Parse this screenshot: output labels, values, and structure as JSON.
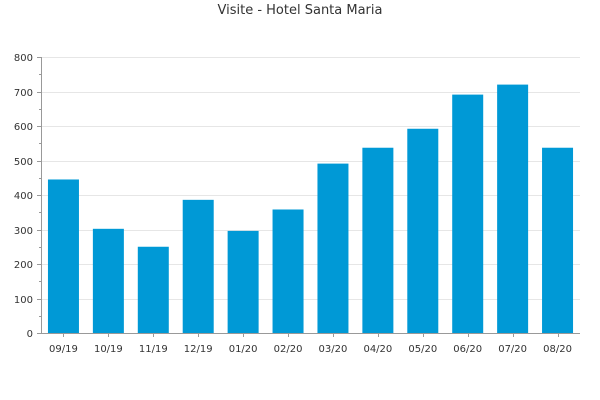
{
  "chart_data": {
    "type": "bar",
    "title": "Visite - Hotel Santa Maria",
    "xlabel": "",
    "ylabel": "",
    "categories": [
      "09/19",
      "10/19",
      "11/19",
      "12/19",
      "01/20",
      "02/20",
      "03/20",
      "04/20",
      "05/20",
      "06/20",
      "07/20",
      "08/20"
    ],
    "series": [
      {
        "values": [
          445,
          302,
          250,
          386,
          296,
          358,
          491,
          537,
          592,
          691,
          720,
          537
        ],
        "color": "#0099d6"
      }
    ],
    "ylim": [
      0,
      800
    ],
    "yticks": [
      "0",
      "100",
      "200",
      "300",
      "400",
      "500",
      "600",
      "700",
      "800"
    ],
    "grid": true,
    "legend": "none"
  }
}
